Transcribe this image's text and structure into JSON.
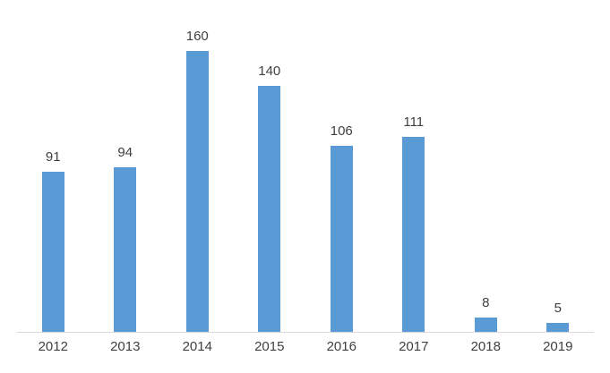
{
  "chart_data": {
    "type": "bar",
    "categories": [
      "2012",
      "2013",
      "2014",
      "2015",
      "2016",
      "2017",
      "2018",
      "2019"
    ],
    "values": [
      91,
      94,
      160,
      140,
      106,
      111,
      8,
      5
    ],
    "title": "",
    "xlabel": "",
    "ylabel": "",
    "ylim": [
      0,
      180
    ],
    "grid": false,
    "legend": false,
    "data_labels": true,
    "colors": {
      "bar_fill": "#5B9BD5",
      "axis_line": "#D9D9D9",
      "label_text": "#404040"
    }
  }
}
